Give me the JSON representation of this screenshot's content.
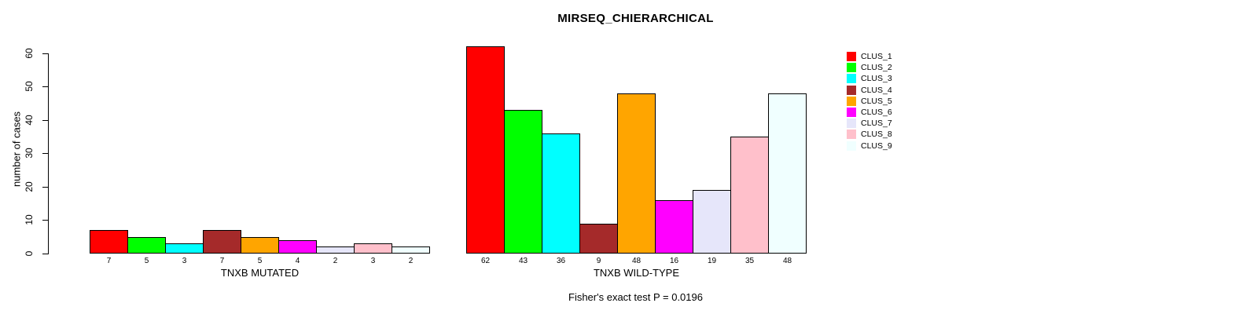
{
  "chart_data": {
    "type": "bar",
    "title": "MIRSEQ_CHIERARCHICAL",
    "ylabel": "number of cases",
    "xlabel": "",
    "ylim": [
      0,
      62
    ],
    "yticks": [
      0,
      10,
      20,
      30,
      40,
      50,
      60
    ],
    "grid": false,
    "legend_position": "right",
    "bar_value_labels_shown": true,
    "groups": [
      {
        "label": "TNXB MUTATED",
        "values": [
          7,
          5,
          3,
          7,
          5,
          4,
          2,
          3,
          2
        ]
      },
      {
        "label": "TNXB WILD-TYPE",
        "values": [
          62,
          43,
          36,
          9,
          48,
          16,
          19,
          35,
          48
        ]
      }
    ],
    "clusters": [
      {
        "label": "CLUS_1",
        "color": "#FF0000"
      },
      {
        "label": "CLUS_2",
        "color": "#00FF00"
      },
      {
        "label": "CLUS_3",
        "color": "#00FFFF"
      },
      {
        "label": "CLUS_4",
        "color": "#A52A2A"
      },
      {
        "label": "CLUS_5",
        "color": "#FFA500"
      },
      {
        "label": "CLUS_6",
        "color": "#FF00FF"
      },
      {
        "label": "CLUS_7",
        "color": "#E6E6FA"
      },
      {
        "label": "CLUS_8",
        "color": "#FFC0CB"
      },
      {
        "label": "CLUS_9",
        "color": "#F0FFFF"
      }
    ],
    "annotation": "Fisher's exact test P = 0.0196",
    "axis_color": "#000000",
    "bar_border_color": "#000000",
    "background_color": "#FFFFFF"
  }
}
